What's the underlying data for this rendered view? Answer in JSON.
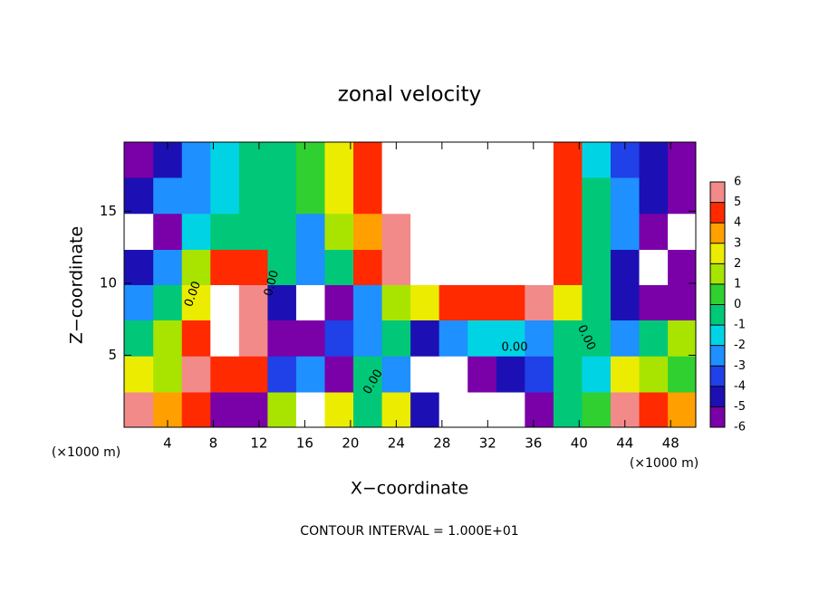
{
  "chart_data": {
    "type": "contour",
    "title": "zonal velocity",
    "xlabel": "X−coordinate",
    "ylabel": "Z−coordinate",
    "x_unit_left": "(×1000 m)",
    "x_unit_right": "(×1000 m)",
    "footer": "CONTOUR INTERVAL = 1.000E+01",
    "contour_labels": [
      "0.00",
      "0.00",
      "0.00",
      "0.00",
      "0.00"
    ],
    "xlim": [
      0.2,
      50.2
    ],
    "ylim": [
      0,
      19.8
    ],
    "xticks": [
      4,
      8,
      12,
      16,
      20,
      24,
      28,
      32,
      36,
      40,
      44,
      48
    ],
    "yticks": [
      5,
      10,
      15
    ],
    "x": [
      1.5,
      4,
      6.5,
      9,
      11.5,
      14,
      16.5,
      19,
      21.5,
      24,
      26.5,
      29,
      31.5,
      34,
      36.5,
      39,
      41.5,
      44,
      46.5,
      49
    ],
    "y": [
      1.2,
      3.7,
      6.2,
      8.7,
      11.1,
      13.6,
      16.1,
      18.6
    ],
    "values": [
      [
        6,
        4,
        5,
        -5,
        -5,
        2,
        -8,
        3,
        0,
        3,
        -4,
        -8,
        -8,
        -8,
        -5,
        0,
        1,
        6,
        5,
        4
      ],
      [
        3,
        2,
        6,
        5,
        5,
        -3,
        -2,
        -5,
        0,
        -2,
        -8,
        -8,
        -5,
        -4,
        -3,
        0,
        -1,
        3,
        2,
        1
      ],
      [
        0,
        2,
        5,
        8,
        6,
        -5,
        -5,
        -3,
        -2,
        0,
        -4,
        -2,
        -1,
        -1,
        -2,
        0,
        0,
        -2,
        0,
        2
      ],
      [
        -2,
        0,
        3,
        8,
        6,
        -4,
        -8,
        -5,
        -2,
        2,
        3,
        5,
        5,
        5,
        6,
        3,
        0,
        -4,
        -5,
        -6
      ],
      [
        -4,
        -2,
        2,
        5,
        5,
        0,
        -2,
        0,
        5,
        6,
        8,
        8,
        8,
        8,
        8,
        5,
        0,
        -4,
        -8,
        -5
      ],
      [
        -8,
        -5,
        -1,
        0,
        0,
        0,
        -2,
        2,
        4,
        6,
        8,
        8,
        8,
        8,
        8,
        5,
        0,
        -2,
        -5,
        -8
      ],
      [
        -4,
        -2,
        -2,
        -1,
        0,
        0,
        1,
        3,
        5,
        8,
        8,
        8,
        8,
        8,
        8,
        5,
        0,
        -2,
        -4,
        -5
      ],
      [
        -6,
        -4,
        -2,
        -1,
        0,
        0,
        1,
        3,
        5,
        8,
        8,
        8,
        8,
        8,
        8,
        5,
        -1,
        -3,
        -4,
        -6
      ]
    ],
    "levels": [
      -6,
      -5,
      -4,
      -3,
      -2,
      -1,
      0,
      1,
      2,
      3,
      4,
      5,
      6
    ],
    "colors": [
      "#7a00a8",
      "#1c10b4",
      "#2040e8",
      "#1e90ff",
      "#00d4e4",
      "#00c878",
      "#30d030",
      "#a8e400",
      "#ecec00",
      "#ffa000",
      "#ff2a00",
      "#f28a8a"
    ]
  }
}
